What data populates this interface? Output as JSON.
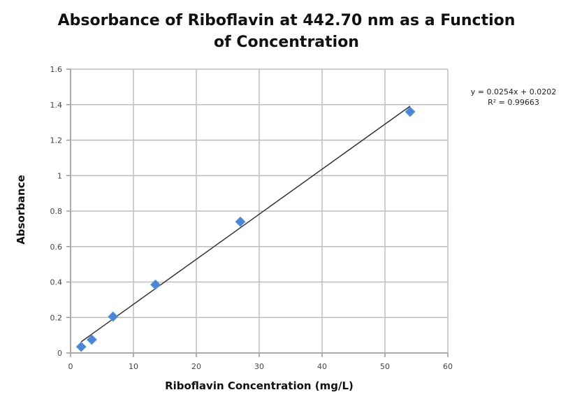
{
  "chart_data": {
    "type": "scatter",
    "title": "Absorbance of Riboflavin at 442.70 nm as a Function of Concentration",
    "title_lines": [
      "Absorbance of Riboflavin at 442.70 nm as a Function",
      "of Concentration"
    ],
    "xlabel": "Riboflavin Concentration (mg/L)",
    "ylabel": "Absorbance",
    "xlim": [
      0,
      60
    ],
    "ylim": [
      0,
      1.6
    ],
    "xticks": [
      0,
      10,
      20,
      30,
      40,
      50,
      60
    ],
    "yticks": [
      0,
      0.2,
      0.4,
      0.6,
      0.8,
      1,
      1.2,
      1.4,
      1.6
    ],
    "xtick_labels": [
      "0",
      "10",
      "20",
      "30",
      "40",
      "50",
      "60"
    ],
    "ytick_labels": [
      "0",
      "0.2",
      "0.4",
      "0.6",
      "0.8",
      "1",
      "1.2",
      "1.4",
      "1.6"
    ],
    "grid": true,
    "legend": "none",
    "series": [
      {
        "name": "Absorbance",
        "marker": "diamond",
        "color": "#4a86d8",
        "x": [
          1.69,
          3.38,
          6.75,
          13.5,
          27.0,
          54.0
        ],
        "y": [
          0.035,
          0.075,
          0.205,
          0.385,
          0.74,
          1.36
        ]
      }
    ],
    "trendline": {
      "type": "linear",
      "slope": 0.0254,
      "intercept": 0.0202,
      "x_range": [
        1.69,
        54.0
      ],
      "color": "#333333",
      "equation_label": "y = 0.0254x + 0.0202",
      "r_squared_label": "R² = 0.99663"
    }
  }
}
